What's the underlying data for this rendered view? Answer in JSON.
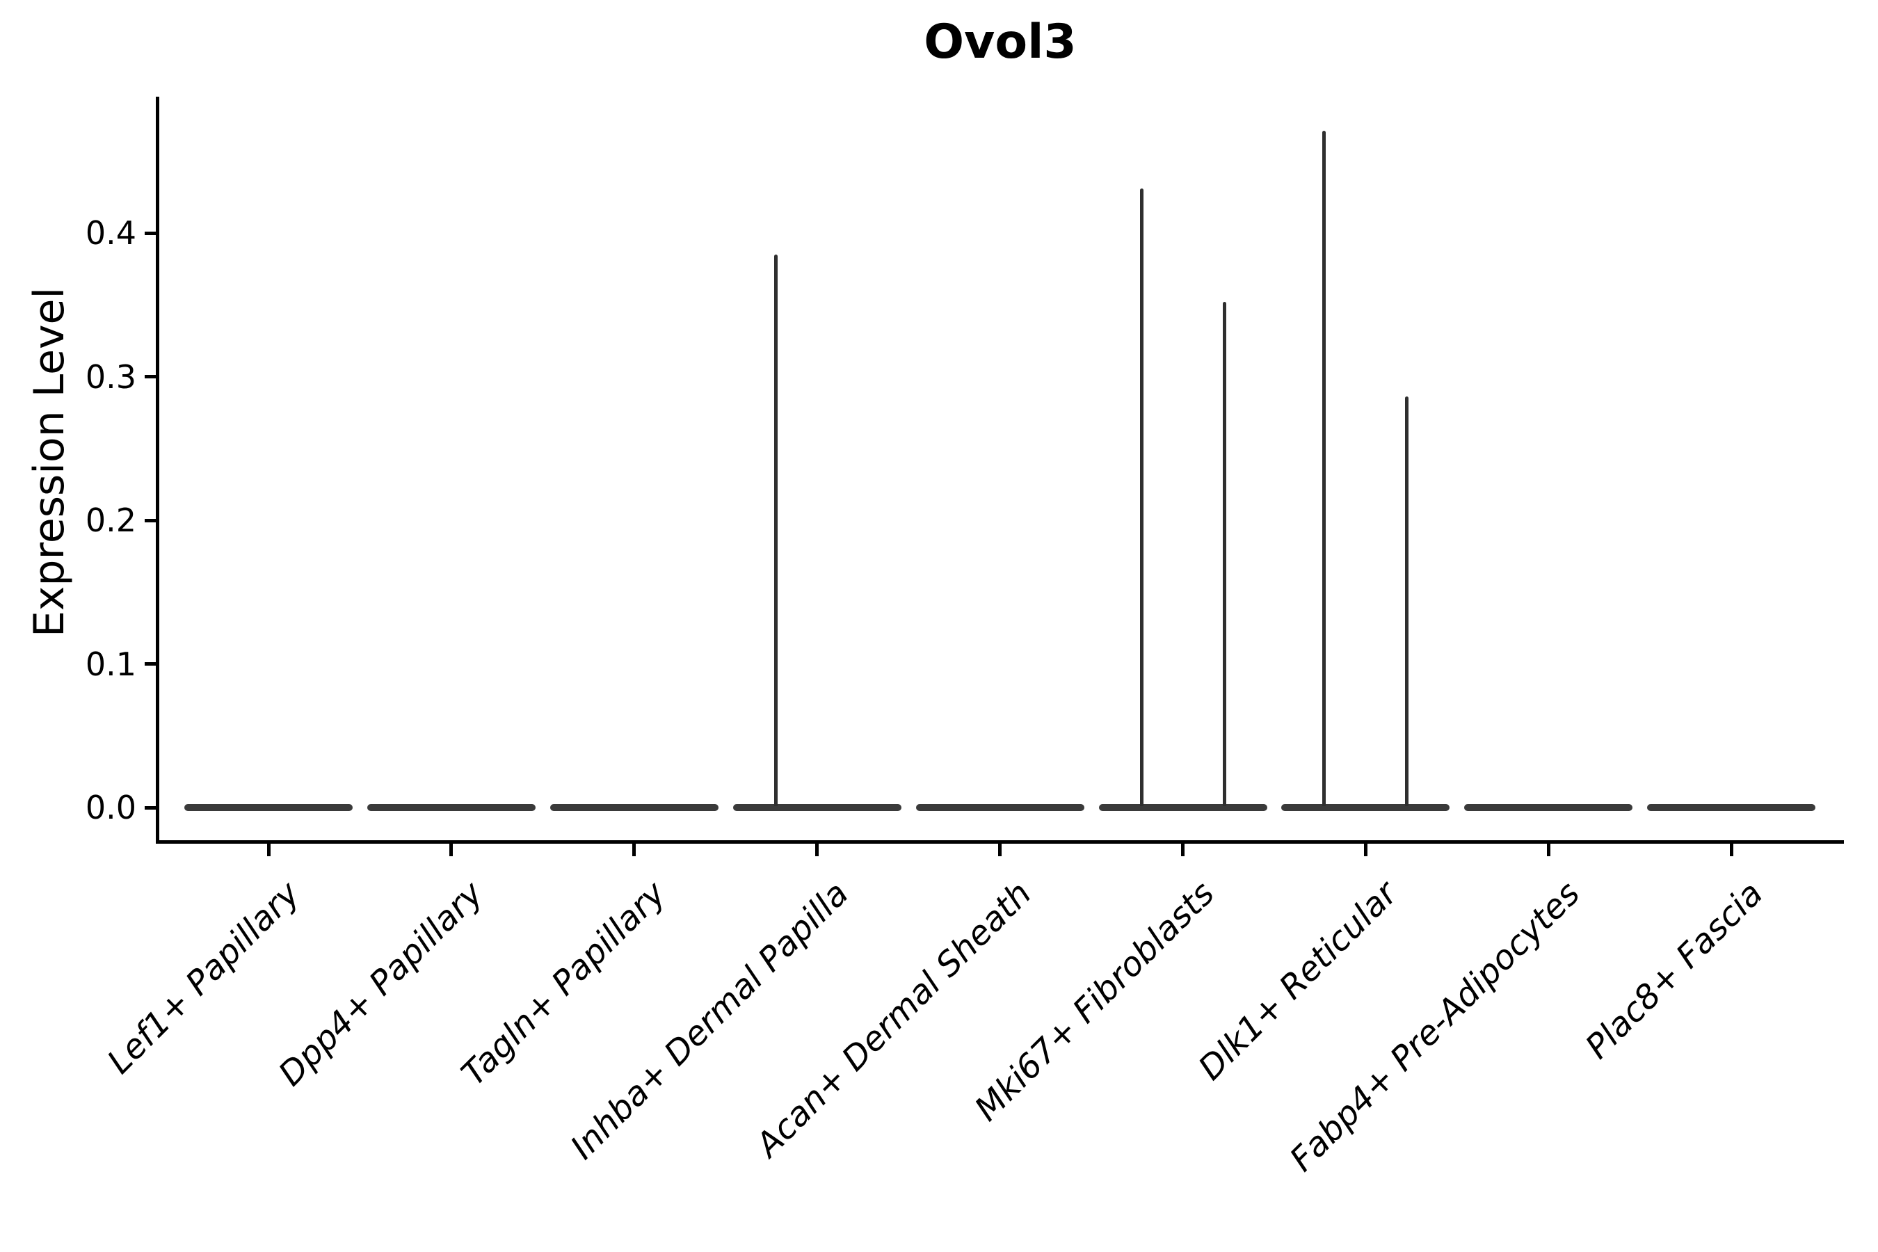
{
  "chart_data": {
    "type": "violin",
    "title": "Ovol3",
    "ylabel": "Expression Level",
    "xlabel": "",
    "ytick_labels": [
      "0.0",
      "0.1",
      "0.2",
      "0.3",
      "0.4"
    ],
    "ylim": [
      -0.023,
      0.494
    ],
    "grid": false,
    "legend": false,
    "categories": [
      "Lef1+ Papillary",
      "Dpp4+ Papillary",
      "Tagln+ Papillary",
      "Inhba+ Dermal Papilla",
      "Acan+ Dermal Sheath",
      "Mki67+ Fibroblasts",
      "Dlk1+ Reticular",
      "Fabp4+ Pre-Adipocytes",
      "Plac8+ Fascia"
    ],
    "violins": [
      {
        "category": "Lef1+ Papillary",
        "baseline_value": 0.0,
        "max_left": 0,
        "max_right": 0
      },
      {
        "category": "Dpp4+ Papillary",
        "baseline_value": 0.0,
        "max_left": 0,
        "max_right": 0
      },
      {
        "category": "Tagln+ Papillary",
        "baseline_value": 0.0,
        "max_left": 0,
        "max_right": 0
      },
      {
        "category": "Inhba+ Dermal Papilla",
        "baseline_value": 0.0,
        "max_left": 0.385,
        "max_right": 0
      },
      {
        "category": "Acan+ Dermal Sheath",
        "baseline_value": 0.0,
        "max_left": 0,
        "max_right": 0
      },
      {
        "category": "Mki67+ Fibroblasts",
        "baseline_value": 0.0,
        "max_left": 0.431,
        "max_right": 0.352
      },
      {
        "category": "Dlk1+ Reticular",
        "baseline_value": 0.0,
        "max_left": 0.471,
        "max_right": 0.286
      },
      {
        "category": "Fabp4+ Pre-Adipocytes",
        "baseline_value": 0.0,
        "max_left": 0,
        "max_right": 0
      },
      {
        "category": "Plac8+ Fascia",
        "baseline_value": 0.0,
        "max_left": 0,
        "max_right": 0
      }
    ]
  },
  "colors": {
    "violin_outline": "#3a3a3a",
    "spike": "#2f2f2f",
    "axis": "#000000",
    "text": "#000000"
  }
}
